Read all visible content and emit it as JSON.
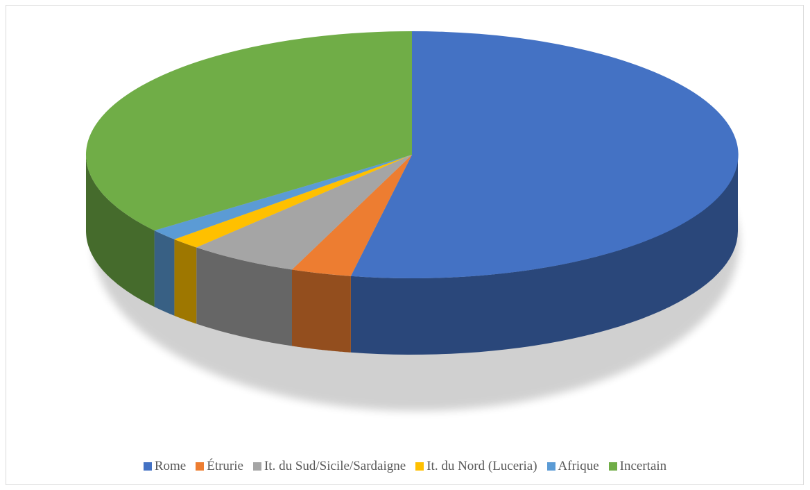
{
  "chart_data": {
    "type": "pie",
    "style": "3d",
    "start": "top, clockwise",
    "legend_position": "bottom",
    "series": [
      {
        "label": "Rome",
        "value": 53,
        "color": "#4472C4"
      },
      {
        "label": "Étrurie",
        "value": 3,
        "color": "#ED7D31"
      },
      {
        "label": "It. du Sud/Sicile/Sardaigne",
        "value": 5.5,
        "color": "#A5A5A5"
      },
      {
        "label": "It. du Nord (Luceria)",
        "value": 1.5,
        "color": "#FFC000"
      },
      {
        "label": "Afrique",
        "value": 1.5,
        "color": "#5B9BD5"
      },
      {
        "label": "Incertain",
        "value": 35.5,
        "color": "#70AD47"
      }
    ]
  }
}
